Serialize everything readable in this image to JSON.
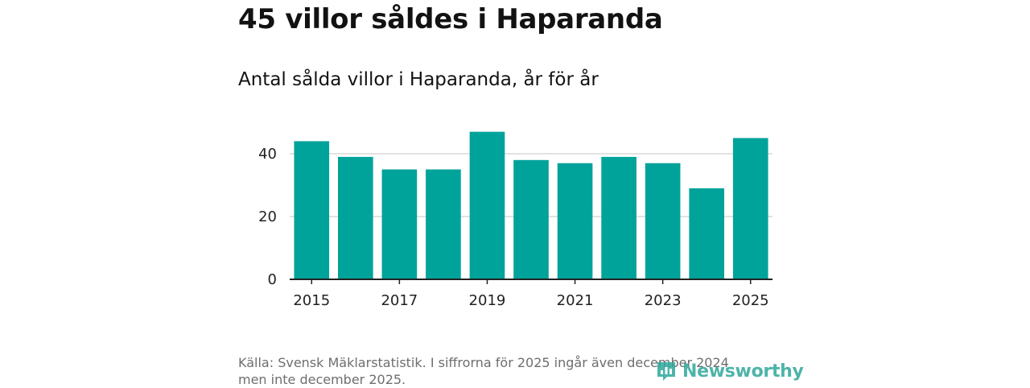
{
  "header": {
    "title": "45 villor såldes i Haparanda",
    "subtitle": "Antal sålda villor i Haparanda, år för år"
  },
  "footer": {
    "source_line1": "Källa: Svensk Mäklarstatistik. I siffrorna för 2025 ingår även december 2024",
    "source_line2": "men inte december 2025.",
    "brand": "Newsworthy",
    "brand_icon": "newsworthy-logo-icon"
  },
  "colors": {
    "bar": "#00a39a",
    "grid": "#d9d9d9",
    "axis": "#222222",
    "brand": "#2fa89c"
  },
  "chart_data": {
    "type": "bar",
    "title": "Antal sålda villor i Haparanda, år för år",
    "xlabel": "",
    "ylabel": "",
    "categories": [
      2015,
      2016,
      2017,
      2018,
      2019,
      2020,
      2021,
      2022,
      2023,
      2024,
      2025
    ],
    "values": [
      44,
      39,
      35,
      35,
      47,
      38,
      37,
      39,
      37,
      29,
      45
    ],
    "ylim": [
      0,
      50
    ],
    "yticks": [
      0,
      20,
      40
    ],
    "xticks": [
      2015,
      2017,
      2019,
      2021,
      2023,
      2025
    ],
    "grid": true
  }
}
